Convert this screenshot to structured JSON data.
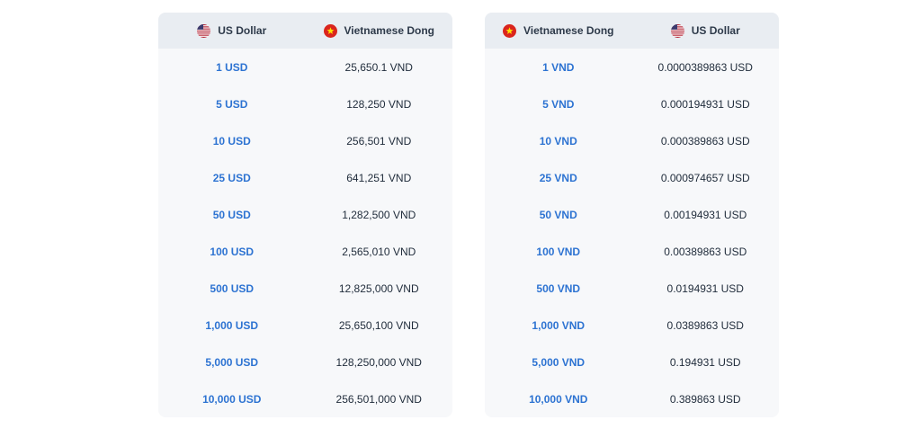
{
  "colors": {
    "page_background": "#ffffff",
    "card_background": "#f7f8fa",
    "header_background": "#e9edf2",
    "link_blue": "#2d73d2",
    "value_text": "#1f2b3a",
    "us_flag_red": "#b22234",
    "us_flag_blue": "#3c3b6e",
    "vn_flag_red": "#da251d",
    "vn_flag_yellow": "#ffde00"
  },
  "tables": [
    {
      "id": "usd-to-vnd",
      "columns": [
        {
          "label": "US Dollar",
          "flag": "us-flag-icon"
        },
        {
          "label": "Vietnamese Dong",
          "flag": "vn-flag-icon"
        }
      ],
      "rows": [
        {
          "from": "1 USD",
          "to": "25,650.1 VND"
        },
        {
          "from": "5 USD",
          "to": "128,250 VND"
        },
        {
          "from": "10 USD",
          "to": "256,501 VND"
        },
        {
          "from": "25 USD",
          "to": "641,251 VND"
        },
        {
          "from": "50 USD",
          "to": "1,282,500 VND"
        },
        {
          "from": "100 USD",
          "to": "2,565,010 VND"
        },
        {
          "from": "500 USD",
          "to": "12,825,000 VND"
        },
        {
          "from": "1,000 USD",
          "to": "25,650,100 VND"
        },
        {
          "from": "5,000 USD",
          "to": "128,250,000 VND"
        },
        {
          "from": "10,000 USD",
          "to": "256,501,000 VND"
        }
      ]
    },
    {
      "id": "vnd-to-usd",
      "columns": [
        {
          "label": "Vietnamese Dong",
          "flag": "vn-flag-icon"
        },
        {
          "label": "US Dollar",
          "flag": "us-flag-icon"
        }
      ],
      "rows": [
        {
          "from": "1 VND",
          "to": "0.0000389863 USD"
        },
        {
          "from": "5 VND",
          "to": "0.000194931 USD"
        },
        {
          "from": "10 VND",
          "to": "0.000389863 USD"
        },
        {
          "from": "25 VND",
          "to": "0.000974657 USD"
        },
        {
          "from": "50 VND",
          "to": "0.00194931 USD"
        },
        {
          "from": "100 VND",
          "to": "0.00389863 USD"
        },
        {
          "from": "500 VND",
          "to": "0.0194931 USD"
        },
        {
          "from": "1,000 VND",
          "to": "0.0389863 USD"
        },
        {
          "from": "5,000 VND",
          "to": "0.194931 USD"
        },
        {
          "from": "10,000 VND",
          "to": "0.389863 USD"
        }
      ]
    }
  ]
}
